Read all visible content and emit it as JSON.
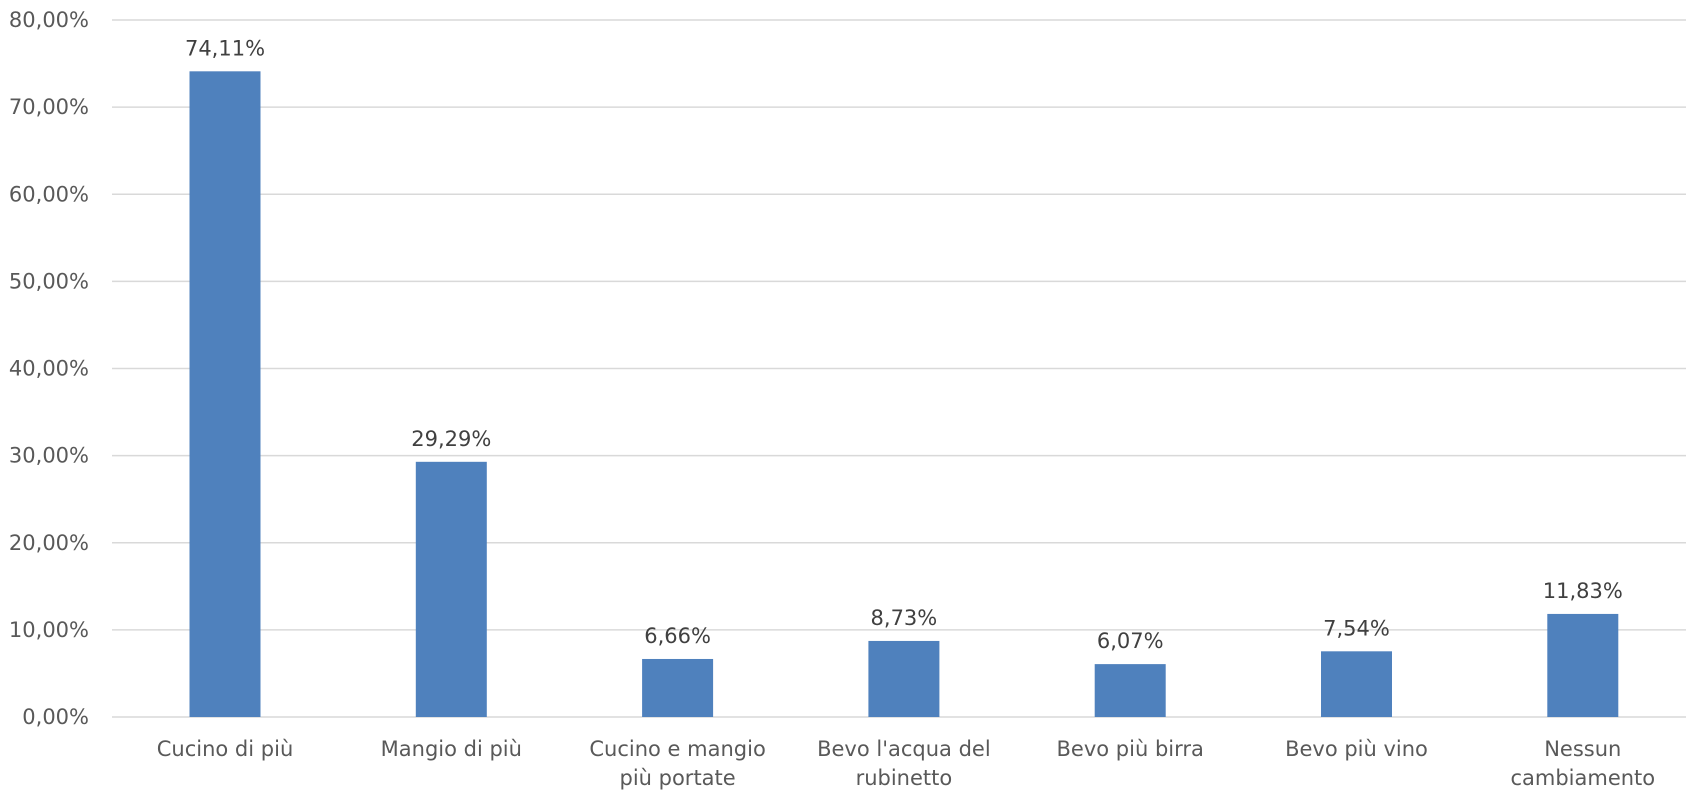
{
  "chart_data": {
    "type": "bar",
    "categories": [
      [
        "Cucino di più"
      ],
      [
        "Mangio di più"
      ],
      [
        "Cucino e mangio",
        "più portate"
      ],
      [
        "Bevo l'acqua del",
        "rubinetto"
      ],
      [
        "Bevo più birra"
      ],
      [
        "Bevo più vino"
      ],
      [
        "Nessun",
        "cambiamento"
      ]
    ],
    "values": [
      74.11,
      29.29,
      6.66,
      8.73,
      6.07,
      7.54,
      11.83
    ],
    "value_labels": [
      "74,11%",
      "29,29%",
      "6,66%",
      "8,73%",
      "6,07%",
      "7,54%",
      "11,83%"
    ],
    "title": "",
    "xlabel": "",
    "ylabel": "",
    "ylim": [
      0,
      80
    ],
    "yticks": [
      0,
      10,
      20,
      30,
      40,
      50,
      60,
      70,
      80
    ],
    "ytick_labels": [
      "0,00%",
      "10,00%",
      "20,00%",
      "30,00%",
      "40,00%",
      "50,00%",
      "60,00%",
      "70,00%",
      "80,00%"
    ],
    "grid": true,
    "legend": "none",
    "bar_color": "#4f81bd"
  }
}
